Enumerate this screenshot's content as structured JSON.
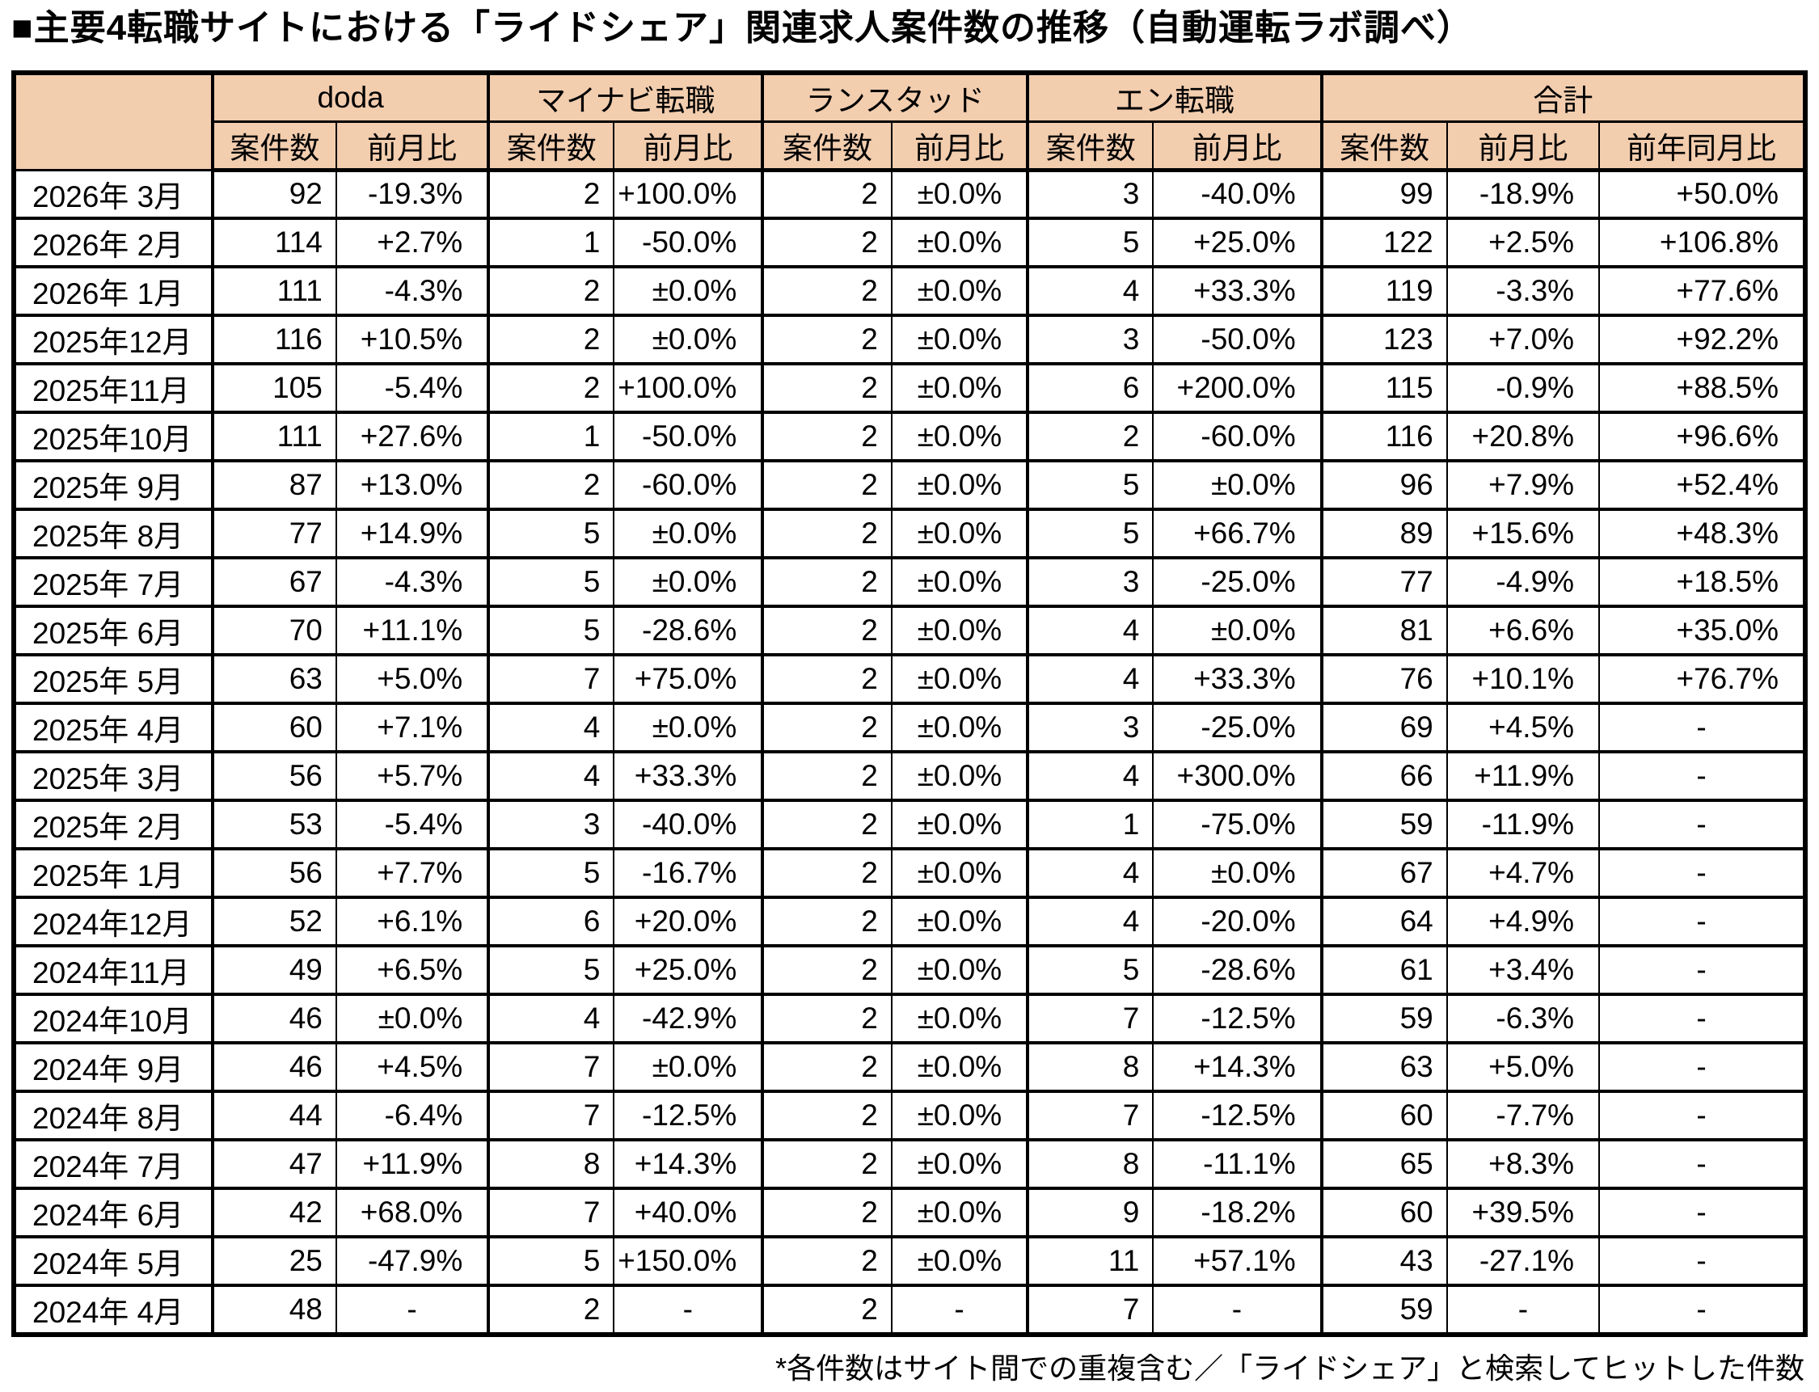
{
  "title": "■主要4転職サイトにおける「ライドシェア」関連求人案件数の推移（自動運転ラボ調べ）",
  "footnote": "*各件数はサイト間での重複含む／「ライドシェア」と検索してヒットした件数",
  "colors": {
    "header_bg": "#F2CDAE",
    "border": "#000000",
    "text": "#000000",
    "background": "#FFFFFF"
  },
  "table": {
    "corner_label": "",
    "groups": [
      {
        "label": "doda",
        "cols": [
          "案件数",
          "前月比"
        ]
      },
      {
        "label": "マイナビ転職",
        "cols": [
          "案件数",
          "前月比"
        ]
      },
      {
        "label": "ランスタッド",
        "cols": [
          "案件数",
          "前月比"
        ]
      },
      {
        "label": "エン転職",
        "cols": [
          "案件数",
          "前月比"
        ]
      },
      {
        "label": "合計",
        "cols": [
          "案件数",
          "前月比",
          "前年同月比"
        ]
      }
    ]
  },
  "chart_data": {
    "type": "table",
    "title": "主要4転職サイトにおける「ライドシェア」関連求人案件数の推移（自動運転ラボ調べ）",
    "columns": [
      "",
      "doda 案件数",
      "doda 前月比",
      "マイナビ転職 案件数",
      "マイナビ転職 前月比",
      "ランスタッド 案件数",
      "ランスタッド 前月比",
      "エン転職 案件数",
      "エン転職 前月比",
      "合計 案件数",
      "合計 前月比",
      "合計 前年同月比"
    ],
    "rows": [
      [
        "2026年 3月",
        "92",
        "-19.3%",
        "2",
        "+100.0%",
        "2",
        "±0.0%",
        "3",
        "-40.0%",
        "99",
        "-18.9%",
        "+50.0%"
      ],
      [
        "2026年 2月",
        "114",
        "+2.7%",
        "1",
        "-50.0%",
        "2",
        "±0.0%",
        "5",
        "+25.0%",
        "122",
        "+2.5%",
        "+106.8%"
      ],
      [
        "2026年 1月",
        "111",
        "-4.3%",
        "2",
        "±0.0%",
        "2",
        "±0.0%",
        "4",
        "+33.3%",
        "119",
        "-3.3%",
        "+77.6%"
      ],
      [
        "2025年12月",
        "116",
        "+10.5%",
        "2",
        "±0.0%",
        "2",
        "±0.0%",
        "3",
        "-50.0%",
        "123",
        "+7.0%",
        "+92.2%"
      ],
      [
        "2025年11月",
        "105",
        "-5.4%",
        "2",
        "+100.0%",
        "2",
        "±0.0%",
        "6",
        "+200.0%",
        "115",
        "-0.9%",
        "+88.5%"
      ],
      [
        "2025年10月",
        "111",
        "+27.6%",
        "1",
        "-50.0%",
        "2",
        "±0.0%",
        "2",
        "-60.0%",
        "116",
        "+20.8%",
        "+96.6%"
      ],
      [
        "2025年 9月",
        "87",
        "+13.0%",
        "2",
        "-60.0%",
        "2",
        "±0.0%",
        "5",
        "±0.0%",
        "96",
        "+7.9%",
        "+52.4%"
      ],
      [
        "2025年 8月",
        "77",
        "+14.9%",
        "5",
        "±0.0%",
        "2",
        "±0.0%",
        "5",
        "+66.7%",
        "89",
        "+15.6%",
        "+48.3%"
      ],
      [
        "2025年 7月",
        "67",
        "-4.3%",
        "5",
        "±0.0%",
        "2",
        "±0.0%",
        "3",
        "-25.0%",
        "77",
        "-4.9%",
        "+18.5%"
      ],
      [
        "2025年 6月",
        "70",
        "+11.1%",
        "5",
        "-28.6%",
        "2",
        "±0.0%",
        "4",
        "±0.0%",
        "81",
        "+6.6%",
        "+35.0%"
      ],
      [
        "2025年 5月",
        "63",
        "+5.0%",
        "7",
        "+75.0%",
        "2",
        "±0.0%",
        "4",
        "+33.3%",
        "76",
        "+10.1%",
        "+76.7%"
      ],
      [
        "2025年 4月",
        "60",
        "+7.1%",
        "4",
        "±0.0%",
        "2",
        "±0.0%",
        "3",
        "-25.0%",
        "69",
        "+4.5%",
        "-"
      ],
      [
        "2025年 3月",
        "56",
        "+5.7%",
        "4",
        "+33.3%",
        "2",
        "±0.0%",
        "4",
        "+300.0%",
        "66",
        "+11.9%",
        "-"
      ],
      [
        "2025年 2月",
        "53",
        "-5.4%",
        "3",
        "-40.0%",
        "2",
        "±0.0%",
        "1",
        "-75.0%",
        "59",
        "-11.9%",
        "-"
      ],
      [
        "2025年 1月",
        "56",
        "+7.7%",
        "5",
        "-16.7%",
        "2",
        "±0.0%",
        "4",
        "±0.0%",
        "67",
        "+4.7%",
        "-"
      ],
      [
        "2024年12月",
        "52",
        "+6.1%",
        "6",
        "+20.0%",
        "2",
        "±0.0%",
        "4",
        "-20.0%",
        "64",
        "+4.9%",
        "-"
      ],
      [
        "2024年11月",
        "49",
        "+6.5%",
        "5",
        "+25.0%",
        "2",
        "±0.0%",
        "5",
        "-28.6%",
        "61",
        "+3.4%",
        "-"
      ],
      [
        "2024年10月",
        "46",
        "±0.0%",
        "4",
        "-42.9%",
        "2",
        "±0.0%",
        "7",
        "-12.5%",
        "59",
        "-6.3%",
        "-"
      ],
      [
        "2024年 9月",
        "46",
        "+4.5%",
        "7",
        "±0.0%",
        "2",
        "±0.0%",
        "8",
        "+14.3%",
        "63",
        "+5.0%",
        "-"
      ],
      [
        "2024年 8月",
        "44",
        "-6.4%",
        "7",
        "-12.5%",
        "2",
        "±0.0%",
        "7",
        "-12.5%",
        "60",
        "-7.7%",
        "-"
      ],
      [
        "2024年 7月",
        "47",
        "+11.9%",
        "8",
        "+14.3%",
        "2",
        "±0.0%",
        "8",
        "-11.1%",
        "65",
        "+8.3%",
        "-"
      ],
      [
        "2024年 6月",
        "42",
        "+68.0%",
        "7",
        "+40.0%",
        "2",
        "±0.0%",
        "9",
        "-18.2%",
        "60",
        "+39.5%",
        "-"
      ],
      [
        "2024年 5月",
        "25",
        "-47.9%",
        "5",
        "+150.0%",
        "2",
        "±0.0%",
        "11",
        "+57.1%",
        "43",
        "-27.1%",
        "-"
      ],
      [
        "2024年 4月",
        "48",
        "-",
        "2",
        "-",
        "2",
        "-",
        "7",
        "-",
        "59",
        "-",
        "-"
      ]
    ]
  }
}
